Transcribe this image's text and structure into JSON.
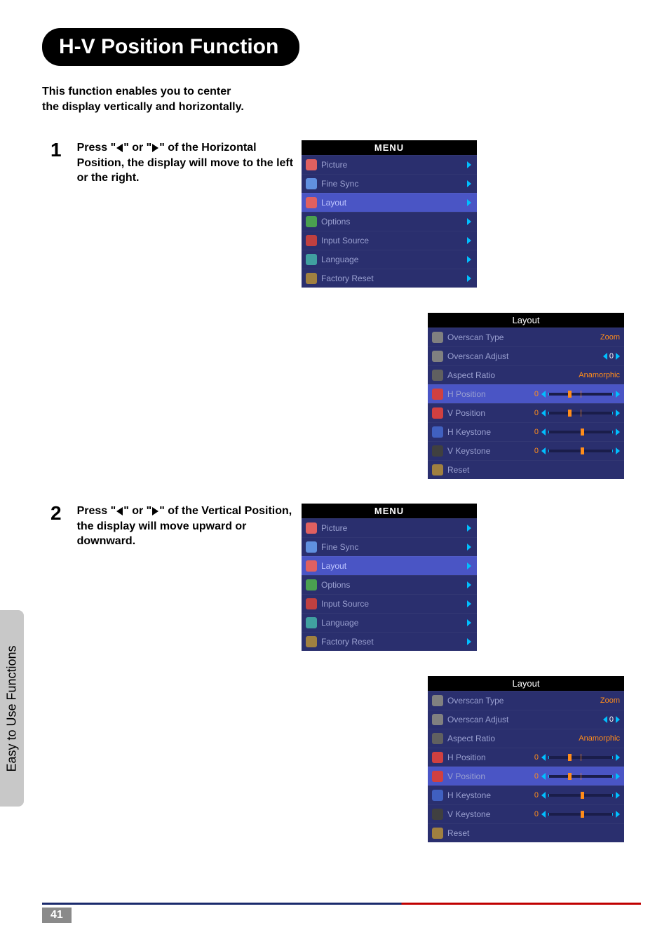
{
  "colors": {
    "page_bg": "#ffffff",
    "title_bg": "#000000",
    "title_fg": "#ffffff",
    "menu_bg": "#2a2f6e",
    "menu_highlight": "#4a55c5",
    "menu_text": "#9aa0d0",
    "header_bg": "#000000",
    "header_fg": "#ffffff",
    "chevron": "#00bfff",
    "value_orange": "#ff8c1a",
    "footer_blue": "#1a2a6c",
    "footer_red": "#c00000",
    "sidebar_bg": "#c8c8c8"
  },
  "sidebar_label": "Easy to Use Functions",
  "title": "H-V Position Function",
  "intro_line1": "This function enables you to center",
  "intro_line2": "the display vertically and horizontally.",
  "step1": {
    "num": "1",
    "text_parts": [
      "Press \"",
      "\" or \"",
      "\" of the Horizontal Position, the display will move to the left or the right."
    ]
  },
  "step2": {
    "num": "2",
    "text_parts": [
      "Press \"",
      "\" or \"",
      "\" of the Vertical Position, the display will move upward or downward."
    ]
  },
  "menu": {
    "header": "MENU",
    "items": [
      {
        "label": "Picture",
        "icon_bg": "#e06060"
      },
      {
        "label": "Fine Sync",
        "icon_bg": "#6090e0"
      },
      {
        "label": "Layout",
        "icon_bg": "#e06060",
        "highlight": true
      },
      {
        "label": "Options",
        "icon_bg": "#4aa050"
      },
      {
        "label": "Input Source",
        "icon_bg": "#c04040"
      },
      {
        "label": "Language",
        "icon_bg": "#40a0a0"
      },
      {
        "label": "Factory Reset",
        "icon_bg": "#a08040"
      }
    ]
  },
  "layout": {
    "header": "Layout",
    "overscan_type": {
      "label": "Overscan Type",
      "value": "Zoom",
      "icon_bg": "#808080"
    },
    "overscan_adjust": {
      "label": "Overscan Adjust",
      "value": "0",
      "icon_bg": "#808080"
    },
    "aspect_ratio": {
      "label": "Aspect Ratio",
      "value": "Anamorphic",
      "icon_bg": "#606060"
    },
    "h_position": {
      "label": "H Position",
      "value": "0",
      "thumb_pct": 30,
      "icon_bg": "#d04040"
    },
    "v_position": {
      "label": "V Position",
      "value": "0",
      "thumb_pct": 30,
      "icon_bg": "#d04040"
    },
    "h_keystone": {
      "label": "H Keystone",
      "value": "0",
      "thumb_pct": 50,
      "icon_bg": "#4060c0"
    },
    "v_keystone": {
      "label": "V Keystone",
      "value": "0",
      "thumb_pct": 50,
      "icon_bg": "#404040"
    },
    "reset": {
      "label": "Reset",
      "icon_bg": "#a08040"
    }
  },
  "layout1_highlight": "h_position",
  "layout2_highlight": "v_position",
  "page_number": "41"
}
